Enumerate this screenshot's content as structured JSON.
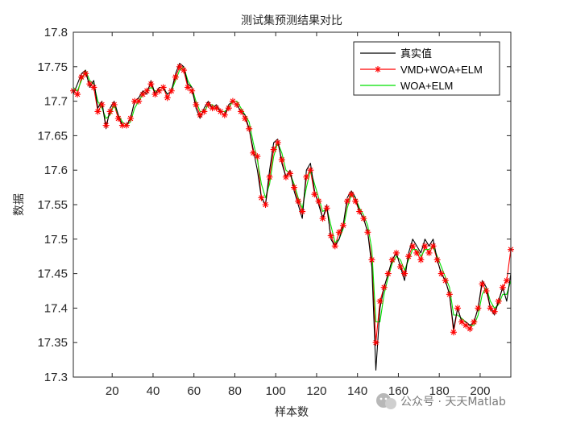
{
  "chart_data": {
    "type": "line",
    "title": "测试集预测结果对比",
    "xlabel": "样本数",
    "ylabel": "数据",
    "xlim": [
      1,
      215
    ],
    "ylim": [
      17.3,
      17.8
    ],
    "x_ticks": [
      20,
      40,
      60,
      80,
      100,
      120,
      140,
      160,
      180,
      200
    ],
    "y_ticks": [
      17.3,
      17.35,
      17.4,
      17.45,
      17.5,
      17.55,
      17.6,
      17.65,
      17.7,
      17.75,
      17.8
    ],
    "y_tick_labels": [
      "17.3",
      "17.35",
      "17.4",
      "17.45",
      "17.5",
      "17.55",
      "17.6",
      "17.65",
      "17.7",
      "17.75",
      "17.8"
    ],
    "legend_position": "top-right",
    "x": [
      1,
      3,
      5,
      7,
      9,
      11,
      13,
      15,
      17,
      19,
      21,
      23,
      25,
      27,
      29,
      31,
      33,
      35,
      37,
      39,
      41,
      43,
      45,
      47,
      49,
      51,
      53,
      55,
      57,
      59,
      61,
      63,
      65,
      67,
      69,
      71,
      73,
      75,
      77,
      79,
      81,
      83,
      85,
      87,
      89,
      91,
      93,
      95,
      97,
      99,
      101,
      103,
      105,
      107,
      109,
      111,
      113,
      115,
      117,
      119,
      121,
      123,
      125,
      127,
      129,
      131,
      133,
      135,
      137,
      139,
      141,
      143,
      145,
      147,
      149,
      151,
      153,
      155,
      157,
      159,
      161,
      163,
      165,
      167,
      169,
      171,
      173,
      175,
      177,
      179,
      181,
      183,
      185,
      187,
      189,
      191,
      193,
      195,
      197,
      199,
      201,
      203,
      205,
      207,
      209,
      211,
      213,
      215
    ],
    "series": [
      {
        "name": "真实值",
        "color": "#000000",
        "marker": "none",
        "values": [
          17.71,
          17.725,
          17.74,
          17.745,
          17.72,
          17.73,
          17.69,
          17.7,
          17.66,
          17.69,
          17.7,
          17.68,
          17.665,
          17.665,
          17.675,
          17.7,
          17.705,
          17.715,
          17.71,
          17.73,
          17.71,
          17.72,
          17.72,
          17.71,
          17.715,
          17.74,
          17.755,
          17.75,
          17.725,
          17.72,
          17.69,
          17.675,
          17.69,
          17.7,
          17.69,
          17.695,
          17.685,
          17.68,
          17.695,
          17.7,
          17.695,
          17.685,
          17.68,
          17.66,
          17.63,
          17.6,
          17.56,
          17.55,
          17.6,
          17.64,
          17.645,
          17.61,
          17.59,
          17.6,
          17.57,
          17.55,
          17.53,
          17.6,
          17.61,
          17.57,
          17.55,
          17.53,
          17.55,
          17.5,
          17.49,
          17.5,
          17.52,
          17.56,
          17.57,
          17.56,
          17.54,
          17.53,
          17.51,
          17.46,
          17.31,
          17.4,
          17.43,
          17.45,
          17.47,
          17.48,
          17.46,
          17.44,
          17.48,
          17.5,
          17.49,
          17.48,
          17.5,
          17.49,
          17.5,
          17.47,
          17.45,
          17.44,
          17.42,
          17.37,
          17.4,
          17.38,
          17.38,
          17.375,
          17.38,
          17.4,
          17.44,
          17.43,
          17.4,
          17.39,
          17.41,
          17.43,
          17.41,
          17.45
        ]
      },
      {
        "name": "VMD+WOA+ELM",
        "color": "#ff0000",
        "marker": "star",
        "values": [
          17.715,
          17.71,
          17.735,
          17.74,
          17.725,
          17.72,
          17.685,
          17.695,
          17.665,
          17.685,
          17.695,
          17.675,
          17.665,
          17.665,
          17.675,
          17.7,
          17.7,
          17.71,
          17.715,
          17.725,
          17.71,
          17.715,
          17.72,
          17.705,
          17.715,
          17.735,
          17.75,
          17.745,
          17.72,
          17.715,
          17.695,
          17.68,
          17.685,
          17.695,
          17.69,
          17.69,
          17.685,
          17.68,
          17.69,
          17.7,
          17.695,
          17.685,
          17.675,
          17.66,
          17.625,
          17.62,
          17.56,
          17.55,
          17.59,
          17.63,
          17.64,
          17.615,
          17.59,
          17.595,
          17.575,
          17.555,
          17.54,
          17.59,
          17.6,
          17.565,
          17.555,
          17.53,
          17.545,
          17.505,
          17.49,
          17.51,
          17.52,
          17.555,
          17.565,
          17.555,
          17.54,
          17.53,
          17.51,
          17.47,
          17.35,
          17.41,
          17.43,
          17.45,
          17.47,
          17.48,
          17.46,
          17.45,
          17.475,
          17.49,
          17.48,
          17.47,
          17.49,
          17.48,
          17.49,
          17.47,
          17.45,
          17.44,
          17.42,
          17.365,
          17.4,
          17.38,
          17.375,
          17.37,
          17.38,
          17.4,
          17.435,
          17.425,
          17.4,
          17.395,
          17.41,
          17.43,
          17.44,
          17.485
        ]
      },
      {
        "name": "WOA+ELM",
        "color": "#00e000",
        "marker": "none",
        "values": [
          17.72,
          17.715,
          17.73,
          17.745,
          17.73,
          17.725,
          17.7,
          17.69,
          17.675,
          17.68,
          17.695,
          17.68,
          17.67,
          17.665,
          17.67,
          17.69,
          17.7,
          17.71,
          17.715,
          17.72,
          17.715,
          17.715,
          17.72,
          17.71,
          17.715,
          17.73,
          17.745,
          17.75,
          17.73,
          17.72,
          17.7,
          17.685,
          17.685,
          17.695,
          17.695,
          17.69,
          17.685,
          17.685,
          17.69,
          17.7,
          17.7,
          17.69,
          17.68,
          17.67,
          17.64,
          17.615,
          17.58,
          17.56,
          17.58,
          17.62,
          17.64,
          17.625,
          17.6,
          17.595,
          17.58,
          17.56,
          17.545,
          17.575,
          17.6,
          17.58,
          17.56,
          17.54,
          17.545,
          17.52,
          17.495,
          17.5,
          17.515,
          17.545,
          17.565,
          17.56,
          17.545,
          17.535,
          17.52,
          17.485,
          17.38,
          17.38,
          17.42,
          17.445,
          17.465,
          17.475,
          17.47,
          17.455,
          17.47,
          17.485,
          17.485,
          17.475,
          17.485,
          17.485,
          17.49,
          17.475,
          17.46,
          17.445,
          17.43,
          17.39,
          17.39,
          17.385,
          17.38,
          17.375,
          17.375,
          17.39,
          17.42,
          17.43,
          17.41,
          17.4,
          17.405,
          17.42,
          17.42,
          17.44
        ]
      }
    ]
  },
  "watermark": {
    "text": "公众号 · 天天Matlab",
    "icon": "wechat-icon"
  }
}
